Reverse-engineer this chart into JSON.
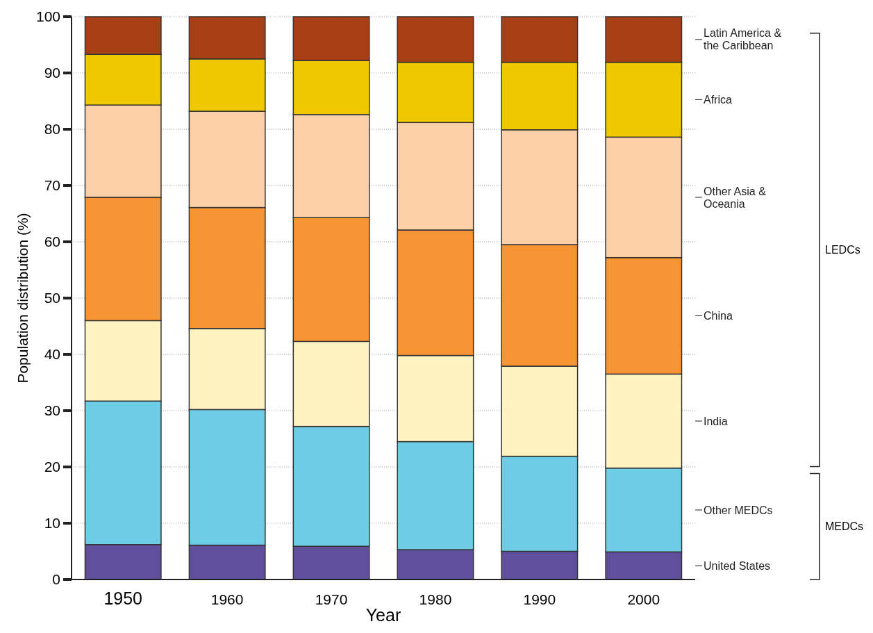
{
  "chart_data": {
    "type": "bar",
    "stacked": true,
    "xlabel": "Year",
    "ylabel": "Population distribution (%)",
    "categories": [
      "1950",
      "1960",
      "1970",
      "1980",
      "1990",
      "2000"
    ],
    "series": [
      {
        "name": "United States",
        "color": "#5f4f9c",
        "values": [
          6.2,
          6.1,
          5.9,
          5.3,
          5.0,
          4.9
        ]
      },
      {
        "name": "Other MEDCs",
        "color": "#6dcde6",
        "values": [
          25.5,
          24.1,
          21.3,
          19.2,
          16.9,
          14.9
        ]
      },
      {
        "name": "India",
        "color": "#fff3c2",
        "values": [
          14.3,
          14.4,
          15.1,
          15.3,
          16.0,
          16.7
        ]
      },
      {
        "name": "China",
        "color": "#f79433",
        "values": [
          21.9,
          21.5,
          22.0,
          22.3,
          21.6,
          20.7
        ]
      },
      {
        "name": "Other Asia &\nOceania",
        "color": "#fdd0a7",
        "values": [
          16.4,
          17.1,
          18.3,
          19.1,
          20.4,
          21.4
        ]
      },
      {
        "name": "Africa",
        "color": "#f0c800",
        "values": [
          9.0,
          9.3,
          9.6,
          10.7,
          12.0,
          13.3
        ]
      },
      {
        "name": "Latin America &\nthe Caribbean",
        "color": "#a63f14",
        "values": [
          6.7,
          7.5,
          7.8,
          8.1,
          8.1,
          8.1
        ]
      }
    ],
    "ylim": [
      0,
      100
    ],
    "yticks": [
      0,
      10,
      20,
      30,
      40,
      50,
      60,
      70,
      80,
      90,
      100
    ],
    "grid": "y",
    "legend": "right",
    "annotations": [
      "MEDCs",
      "LEDCs"
    ]
  }
}
